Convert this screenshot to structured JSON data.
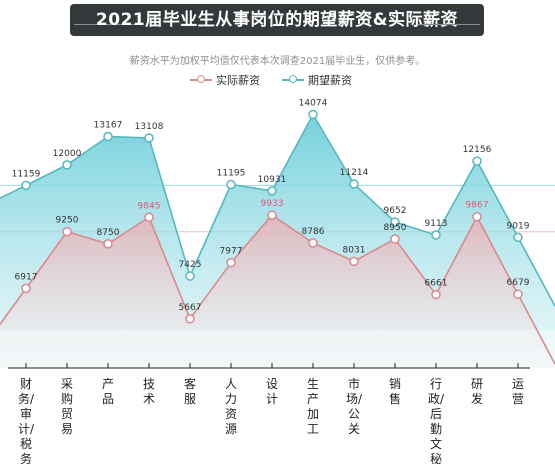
{
  "title": "2021届毕业生从事岗位的期望薪资&实际薪资",
  "subtitle": "薪资水平为加权平均值仅代表本次调查2021届毕业生，仅供参考。",
  "colors": {
    "actual": "#d98a8d",
    "expected": "#55b8bf",
    "highlight": "#e05a78",
    "title_bg": "#33393a"
  },
  "chart_data": {
    "type": "area",
    "title": "2021届毕业生从事岗位的期望薪资&实际薪资",
    "legend_placement": "top-center",
    "categories": [
      "财务/审计/税务",
      "采购贸易",
      "产品",
      "技术",
      "客服",
      "人力资源",
      "设计",
      "生产加工",
      "市场/公关",
      "销售",
      "行政/后勤文秘",
      "研发",
      "运营"
    ],
    "series": [
      {
        "name": "实际薪资",
        "values": [
          6917,
          9250,
          8750,
          9845,
          5667,
          7977,
          9933,
          8786,
          8031,
          8950,
          6661,
          9867,
          6679
        ],
        "highlighted": [
          false,
          false,
          false,
          true,
          false,
          false,
          true,
          false,
          false,
          false,
          false,
          true,
          false
        ]
      },
      {
        "name": "期望薪资",
        "values": [
          11159,
          12000,
          13167,
          13108,
          7425,
          11195,
          10931,
          14074,
          11214,
          9652,
          9113,
          12156,
          9019
        ]
      }
    ],
    "category_labels": [
      "财务/审计/税务",
      "采购贸易",
      "产品",
      "技术",
      "客服",
      "人力资源",
      "设计",
      "生产加工",
      "市场/公关",
      "销售",
      "行政/后勤文秘",
      "研发",
      "运营"
    ]
  }
}
